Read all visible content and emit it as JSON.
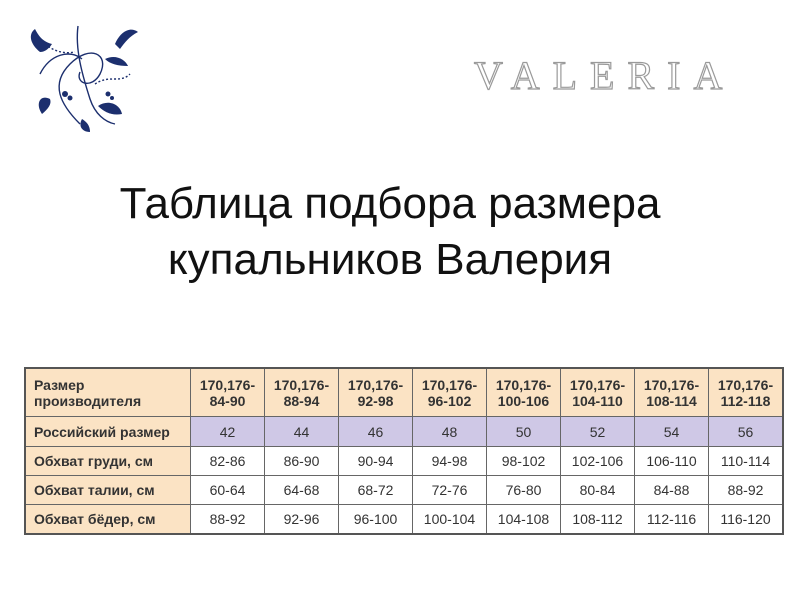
{
  "brand": "VALERIA",
  "title_line1": "Таблица подбора размера",
  "title_line2": "купальников Валерия",
  "colors": {
    "header_bg": "#fbe3c4",
    "russian_row_bg": "#cfc8e6",
    "logo": "#1c2f6e"
  },
  "table": {
    "header": {
      "label": "Размер производителя",
      "values": [
        "170,176-84-90",
        "170,176-88-94",
        "170,176-92-98",
        "170,176-96-102",
        "170,176-100-106",
        "170,176-104-110",
        "170,176-108-114",
        "170,176-112-118"
      ]
    },
    "rows": [
      {
        "label": "Российский размер",
        "values": [
          "42",
          "44",
          "46",
          "48",
          "50",
          "52",
          "54",
          "56"
        ]
      },
      {
        "label": "Обхват груди, см",
        "values": [
          "82-86",
          "86-90",
          "90-94",
          "94-98",
          "98-102",
          "102-106",
          "106-110",
          "110-114"
        ]
      },
      {
        "label": "Обхват талии, см",
        "values": [
          "60-64",
          "64-68",
          "68-72",
          "72-76",
          "76-80",
          "80-84",
          "84-88",
          "88-92"
        ]
      },
      {
        "label": "Обхват бёдер, см",
        "values": [
          "88-92",
          "92-96",
          "96-100",
          "100-104",
          "104-108",
          "108-112",
          "112-116",
          "116-120"
        ]
      }
    ]
  }
}
